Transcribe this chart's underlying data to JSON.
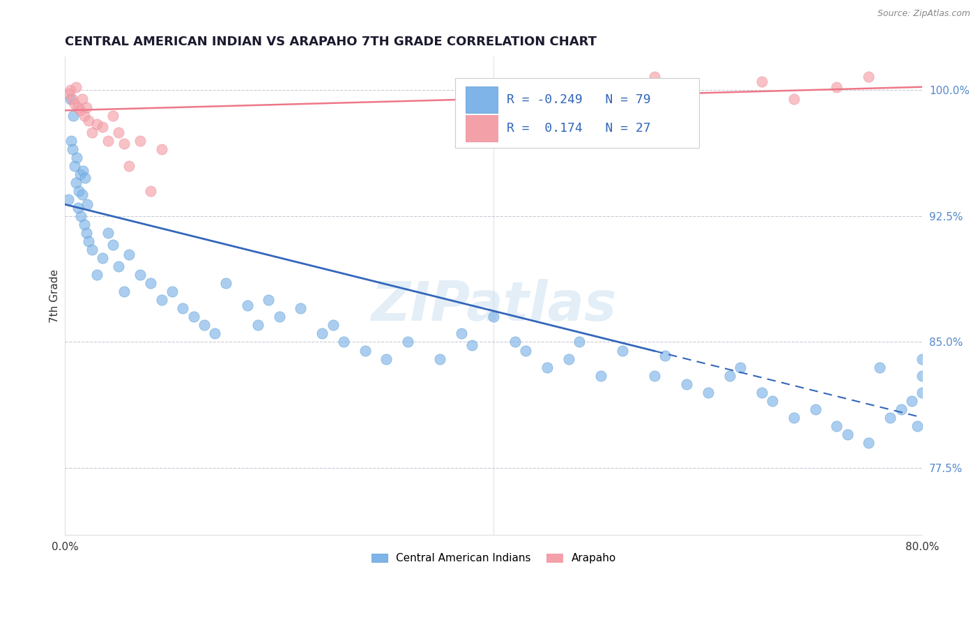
{
  "title": "CENTRAL AMERICAN INDIAN VS ARAPAHO 7TH GRADE CORRELATION CHART",
  "source": "Source: ZipAtlas.com",
  "ylabel": "7th Grade",
  "x_min": 0.0,
  "x_max": 80.0,
  "y_min": 73.5,
  "y_max": 102.0,
  "blue_R": -0.249,
  "blue_N": 79,
  "pink_R": 0.174,
  "pink_N": 27,
  "blue_color": "#7EB4E8",
  "pink_color": "#F4A0A8",
  "blue_line_color": "#3366BB",
  "pink_line_color": "#EE7788",
  "blue_legend": "Central American Indians",
  "pink_legend": "Arapaho",
  "watermark": "ZIPatlas",
  "blue_line_y0": 93.2,
  "blue_line_y1": 80.5,
  "blue_solid_end_x": 55.0,
  "pink_line_y0": 98.8,
  "pink_line_y1": 100.2,
  "blue_scatter_x": [
    0.3,
    0.5,
    0.6,
    0.7,
    0.8,
    0.9,
    1.0,
    1.1,
    1.2,
    1.3,
    1.4,
    1.5,
    1.6,
    1.7,
    1.8,
    1.9,
    2.0,
    2.1,
    2.2,
    2.5,
    3.0,
    3.5,
    4.0,
    4.5,
    5.0,
    5.5,
    6.0,
    7.0,
    8.0,
    9.0,
    10.0,
    11.0,
    12.0,
    13.0,
    14.0,
    15.0,
    17.0,
    18.0,
    19.0,
    20.0,
    22.0,
    24.0,
    25.0,
    26.0,
    28.0,
    30.0,
    32.0,
    35.0,
    37.0,
    38.0,
    40.0,
    42.0,
    43.0,
    45.0,
    47.0,
    48.0,
    50.0,
    52.0,
    55.0,
    56.0,
    58.0,
    60.0,
    62.0,
    63.0,
    65.0,
    66.0,
    68.0,
    70.0,
    72.0,
    73.0,
    75.0,
    76.0,
    77.0,
    78.0,
    79.0,
    79.5,
    80.0,
    80.0,
    80.0
  ],
  "blue_scatter_y": [
    93.5,
    99.5,
    97.0,
    96.5,
    98.5,
    95.5,
    94.5,
    96.0,
    93.0,
    94.0,
    95.0,
    92.5,
    93.8,
    95.2,
    92.0,
    94.8,
    91.5,
    93.2,
    91.0,
    90.5,
    89.0,
    90.0,
    91.5,
    90.8,
    89.5,
    88.0,
    90.2,
    89.0,
    88.5,
    87.5,
    88.0,
    87.0,
    86.5,
    86.0,
    85.5,
    88.5,
    87.2,
    86.0,
    87.5,
    86.5,
    87.0,
    85.5,
    86.0,
    85.0,
    84.5,
    84.0,
    85.0,
    84.0,
    85.5,
    84.8,
    86.5,
    85.0,
    84.5,
    83.5,
    84.0,
    85.0,
    83.0,
    84.5,
    83.0,
    84.2,
    82.5,
    82.0,
    83.0,
    83.5,
    82.0,
    81.5,
    80.5,
    81.0,
    80.0,
    79.5,
    79.0,
    83.5,
    80.5,
    81.0,
    81.5,
    80.0,
    82.0,
    83.0,
    84.0
  ],
  "pink_scatter_x": [
    0.3,
    0.5,
    0.7,
    0.9,
    1.0,
    1.2,
    1.4,
    1.6,
    1.8,
    2.0,
    2.2,
    2.5,
    3.0,
    3.5,
    4.0,
    4.5,
    5.0,
    5.5,
    6.0,
    7.0,
    8.0,
    9.0,
    55.0,
    65.0,
    68.0,
    72.0,
    75.0
  ],
  "pink_scatter_y": [
    99.8,
    100.0,
    99.5,
    99.2,
    100.2,
    99.0,
    98.8,
    99.5,
    98.5,
    99.0,
    98.2,
    97.5,
    98.0,
    97.8,
    97.0,
    98.5,
    97.5,
    96.8,
    95.5,
    97.0,
    94.0,
    96.5,
    100.8,
    100.5,
    99.5,
    100.2,
    100.8
  ]
}
